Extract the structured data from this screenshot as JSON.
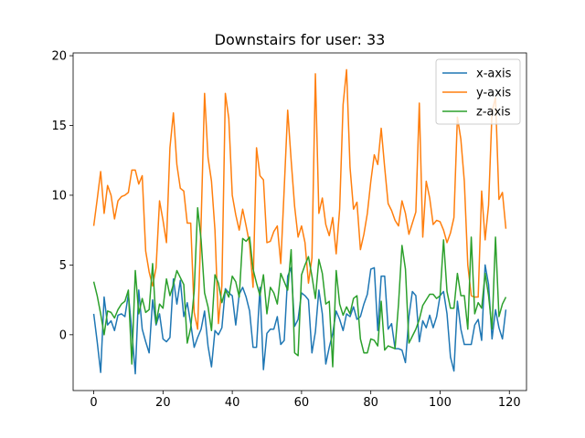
{
  "chart_data": {
    "type": "line",
    "title": "Downstairs for user: 33",
    "x": [
      0,
      1,
      2,
      3,
      4,
      5,
      6,
      7,
      8,
      9,
      10,
      11,
      12,
      13,
      14,
      15,
      16,
      17,
      18,
      19,
      20,
      21,
      22,
      23,
      24,
      25,
      26,
      27,
      28,
      29,
      30,
      31,
      32,
      33,
      34,
      35,
      36,
      37,
      38,
      39,
      40,
      41,
      42,
      43,
      44,
      45,
      46,
      47,
      48,
      49,
      50,
      51,
      52,
      53,
      54,
      55,
      56,
      57,
      58,
      59,
      60,
      61,
      62,
      63,
      64,
      65,
      66,
      67,
      68,
      69,
      70,
      71,
      72,
      73,
      74,
      75,
      76,
      77,
      78,
      79,
      80,
      81,
      82,
      83,
      84,
      85,
      86,
      87,
      88,
      89,
      90,
      91,
      92,
      93,
      94,
      95,
      96,
      97,
      98,
      99,
      100,
      101,
      102,
      103,
      104,
      105,
      106,
      107,
      108,
      109,
      110,
      111,
      112,
      113,
      114,
      115,
      116,
      117,
      118,
      119
    ],
    "series": [
      {
        "name": "x-axis",
        "color": "#1f77b4",
        "values": [
          1.5,
          -0.5,
          -2.7,
          2.7,
          0.7,
          1,
          0.3,
          1.4,
          1.5,
          1.3,
          2.9,
          0.3,
          -2.8,
          3.2,
          0.4,
          -0.5,
          -1.3,
          2.5,
          0.7,
          1.5,
          -0.3,
          -0.5,
          -0.2,
          4,
          2.2,
          3.9,
          1.3,
          2.3,
          0.8,
          -0.9,
          -0.2,
          0.4,
          1.7,
          -0.8,
          -2.3,
          0.3,
          0,
          0.5,
          3.3,
          3,
          2.8,
          0.7,
          2.9,
          3.4,
          2.7,
          1.7,
          -0.9,
          -0.9,
          3.4,
          -2.5,
          0.1,
          0.4,
          0.4,
          1.3,
          -0.7,
          -0.4,
          4.2,
          4.8,
          0.6,
          1.1,
          3,
          2.8,
          2.5,
          -1.3,
          0.2,
          3.2,
          1.5,
          -2.1,
          -0.9,
          0.1,
          1.7,
          1.1,
          0.3,
          1.5,
          1.3,
          2,
          1.1,
          1.3,
          2.2,
          2.9,
          4.7,
          4.8,
          0.3,
          4.2,
          4.2,
          0.4,
          0.8,
          -1,
          -1,
          -1.1,
          -2,
          1.3,
          3.1,
          2.8,
          -0.5,
          1,
          0.5,
          1.4,
          0.5,
          1.3,
          2.8,
          3.1,
          1.5,
          -1.6,
          -2.6,
          2.4,
          0.4,
          -0.7,
          -0.7,
          -0.7,
          0.7,
          1.1,
          -0.4,
          5,
          3.6,
          -0.3,
          1.8,
          0.5,
          -0.3,
          1.8
        ]
      },
      {
        "name": "y-axis",
        "color": "#ff7f0e",
        "values": [
          7.8,
          9.7,
          11.7,
          8.7,
          10.7,
          10,
          8.3,
          9.6,
          9.9,
          10,
          10.2,
          11.8,
          11.8,
          10.8,
          11.4,
          6,
          4.5,
          3.5,
          4.8,
          9.6,
          8.2,
          6.6,
          13.4,
          15.9,
          12.2,
          10.5,
          10.3,
          8,
          8,
          1.6,
          0.4,
          8,
          17.3,
          12.7,
          11,
          7.5,
          0.8,
          3.5,
          17.3,
          15.5,
          10,
          8.6,
          7.5,
          9,
          7.8,
          6.5,
          3.4,
          13.4,
          11.4,
          11.1,
          6.6,
          6.7,
          7.4,
          7.8,
          5.1,
          10.5,
          16.1,
          12.5,
          9.2,
          7,
          7.8,
          6.6,
          3.7,
          5.5,
          18.7,
          8.7,
          9.8,
          7.9,
          7.1,
          8.4,
          5.8,
          9,
          16.5,
          19,
          12,
          9,
          9.5,
          6.1,
          7.2,
          8.7,
          11,
          12.9,
          12.2,
          14.8,
          12,
          9.4,
          8.9,
          8.2,
          7.8,
          9.6,
          8.7,
          7.2,
          8,
          8.8,
          16.6,
          7,
          11,
          9.8,
          7.9,
          8.2,
          8.1,
          7.5,
          6.6,
          7.3,
          8.4,
          15.6,
          14,
          11,
          5,
          2.8,
          2.7,
          2.7,
          10.3,
          6.8,
          9.3,
          16,
          17,
          9.7,
          10.2,
          7.6
        ]
      },
      {
        "name": "z-axis",
        "color": "#2ca02c",
        "values": [
          3.8,
          2.8,
          1.5,
          0,
          1.7,
          1.6,
          1.2,
          1.8,
          2.2,
          2.4,
          3.2,
          -2.1,
          4.6,
          1.5,
          2.6,
          1.6,
          1.8,
          5.1,
          0.8,
          2.2,
          1.9,
          4,
          2.8,
          3.6,
          4.6,
          4.1,
          3.6,
          -0.6,
          0.5,
          3.1,
          9.1,
          6.8,
          3,
          2,
          0.3,
          4.3,
          3.7,
          2.3,
          3.2,
          2.7,
          4.2,
          3.8,
          2.7,
          6.9,
          6.7,
          7,
          4.7,
          3.7,
          2.8,
          4.3,
          1.5,
          3.4,
          3,
          2.2,
          4.4,
          3.8,
          3.2,
          6.1,
          -1.3,
          -1.5,
          4.3,
          5,
          5.6,
          4.2,
          2.6,
          5.4,
          4.4,
          2.2,
          2.4,
          -2.3,
          4.6,
          2.2,
          1.4,
          2,
          1.5,
          2.6,
          2.8,
          -0.3,
          -1.3,
          -1.3,
          -0.3,
          -0.4,
          -0.8,
          2.4,
          -1.1,
          -0.8,
          -0.9,
          -1,
          2.2,
          6.4,
          4.7,
          -0.6,
          -0.1,
          0.4,
          1.1,
          2.1,
          2.5,
          2.9,
          2.9,
          2.6,
          2.8,
          6.8,
          3.1,
          1.9,
          1.9,
          4.4,
          2.8,
          2.8,
          0.4,
          7,
          1.5,
          2.3,
          1.9,
          4.4,
          2.8,
          0.4,
          7,
          1.3,
          2.2,
          2.7
        ]
      }
    ],
    "xlim": [
      -5.95,
      124.95
    ],
    "ylim": [
      -4.0,
      20.2
    ],
    "xticks": [
      0,
      20,
      40,
      60,
      80,
      100,
      120
    ],
    "yticks": [
      0,
      5,
      10,
      15,
      20
    ],
    "legend": "upper right"
  }
}
